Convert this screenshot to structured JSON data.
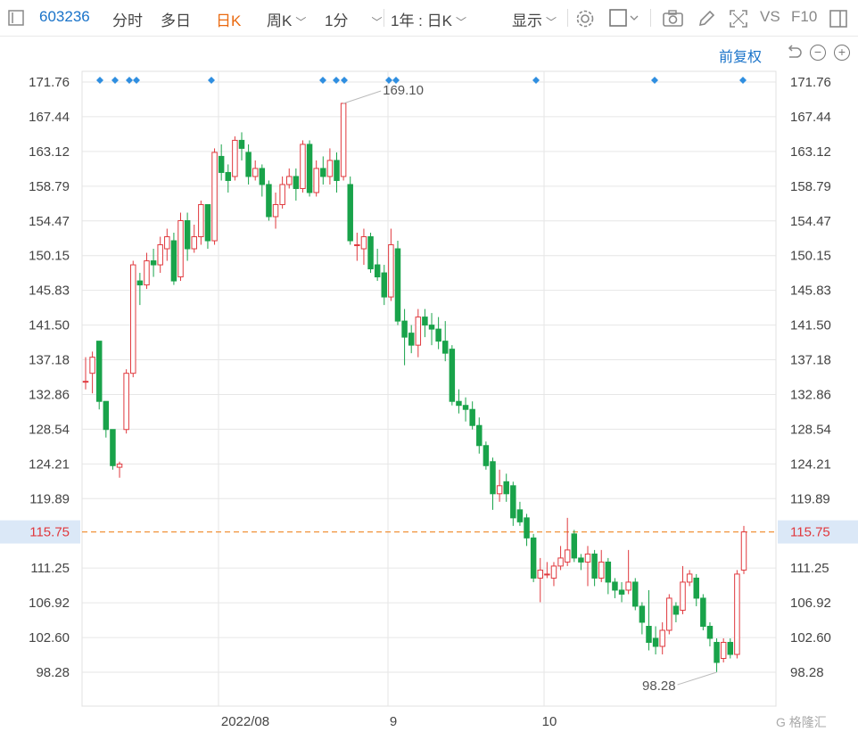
{
  "toolbar": {
    "stock_code": "603236",
    "tab_intraday": "分时",
    "tab_multiday": "多日",
    "tab_daily": "日K",
    "tab_weekly": "周K",
    "tab_minute": "1分",
    "range": "1年 : 日K",
    "display": "显示",
    "vs": "VS",
    "f10": "F10"
  },
  "subbar": {
    "adjust": "前复权"
  },
  "colors": {
    "up": "#e0393e",
    "down": "#19a34a",
    "grid": "#e6e6e6",
    "refline": "#f0923a",
    "highlight_bg": "#dbe8f7",
    "event": "#2f8ee0"
  },
  "icons": [
    "list-toggle-icon",
    "settings-gear-icon",
    "square-checkbox-icon",
    "camera-icon",
    "pencil-icon",
    "fullscreen-icon",
    "panel-icon",
    "undo-icon",
    "zoom-out-icon",
    "zoom-in-icon"
  ],
  "chart_data": {
    "type": "candlestick",
    "y_ticks": [
      "171.76",
      "167.44",
      "163.12",
      "158.79",
      "154.47",
      "150.15",
      "145.83",
      "141.50",
      "137.18",
      "132.86",
      "128.54",
      "124.21",
      "119.89",
      "111.25",
      "106.92",
      "102.60",
      "98.28"
    ],
    "ylim": [
      98.28,
      171.76
    ],
    "x_labels": [
      "2022/08",
      "9",
      "10"
    ],
    "current_price_label": "115.75",
    "current_price": 115.75,
    "annotations": {
      "high_label": "169.10",
      "high": 169.1,
      "low_label": "98.28",
      "low": 98.28
    },
    "event_markers_count": 11,
    "candles": [
      [
        134.5,
        134.5,
        137.5,
        133.5
      ],
      [
        135.5,
        137.5,
        138.2,
        133.0
      ],
      [
        139.5,
        132.0,
        139.5,
        131.0
      ],
      [
        132.0,
        128.5,
        132.0,
        127.5
      ],
      [
        128.5,
        124.0,
        128.5,
        123.5
      ],
      [
        123.8,
        124.2,
        124.5,
        122.5
      ],
      [
        128.5,
        135.5,
        136.0,
        128.0
      ],
      [
        135.5,
        149.0,
        149.5,
        135.0
      ],
      [
        147.0,
        146.5,
        148.0,
        144.0
      ],
      [
        146.5,
        149.5,
        150.5,
        146.0
      ],
      [
        149.5,
        149.0,
        151.0,
        147.5
      ],
      [
        149.0,
        151.5,
        152.5,
        148.0
      ],
      [
        151.0,
        152.5,
        153.5,
        149.5
      ],
      [
        152.0,
        147.0,
        153.0,
        146.5
      ],
      [
        147.5,
        154.5,
        155.5,
        147.0
      ],
      [
        154.5,
        151.0,
        155.5,
        149.5
      ],
      [
        151.0,
        152.5,
        154.0,
        150.5
      ],
      [
        152.5,
        156.5,
        157.0,
        151.5
      ],
      [
        156.5,
        152.0,
        156.5,
        151.0
      ],
      [
        152.0,
        163.0,
        163.5,
        151.5
      ],
      [
        162.5,
        160.5,
        164.0,
        159.5
      ],
      [
        160.5,
        159.5,
        161.5,
        158.0
      ],
      [
        160.0,
        164.5,
        165.0,
        159.5
      ],
      [
        164.5,
        163.5,
        165.5,
        162.0
      ],
      [
        163.0,
        160.0,
        164.0,
        159.0
      ],
      [
        160.0,
        161.0,
        162.0,
        159.5
      ],
      [
        161.0,
        159.0,
        161.5,
        157.5
      ],
      [
        159.0,
        155.0,
        159.5,
        154.5
      ],
      [
        155.0,
        156.5,
        158.0,
        153.5
      ],
      [
        156.5,
        159.0,
        160.0,
        156.0
      ],
      [
        159.0,
        160.0,
        161.0,
        158.5
      ],
      [
        160.0,
        158.5,
        161.0,
        157.0
      ],
      [
        158.5,
        164.0,
        164.5,
        158.0
      ],
      [
        164.0,
        158.0,
        164.5,
        157.5
      ],
      [
        158.0,
        161.0,
        162.0,
        157.5
      ],
      [
        161.0,
        160.0,
        162.5,
        159.0
      ],
      [
        160.0,
        162.0,
        163.5,
        159.0
      ],
      [
        162.0,
        159.5,
        163.0,
        158.0
      ],
      [
        160.0,
        169.1,
        169.1,
        159.5
      ],
      [
        159.0,
        152.0,
        160.0,
        151.5
      ],
      [
        151.5,
        151.5,
        153.0,
        149.5
      ],
      [
        151.0,
        152.5,
        153.5,
        149.0
      ],
      [
        152.5,
        148.5,
        153.0,
        148.0
      ],
      [
        149.0,
        147.5,
        151.0,
        147.0
      ],
      [
        148.0,
        145.0,
        149.0,
        144.0
      ],
      [
        145.0,
        151.5,
        153.5,
        144.5
      ],
      [
        151.0,
        142.0,
        152.0,
        141.5
      ],
      [
        142.0,
        140.0,
        143.5,
        136.5
      ],
      [
        140.5,
        139.0,
        141.5,
        138.0
      ],
      [
        139.0,
        142.5,
        143.5,
        137.5
      ],
      [
        142.5,
        141.5,
        143.5,
        140.0
      ],
      [
        141.5,
        141.0,
        143.0,
        139.0
      ],
      [
        141.0,
        139.5,
        142.5,
        138.5
      ],
      [
        139.5,
        138.0,
        142.0,
        137.0
      ],
      [
        138.5,
        132.0,
        139.0,
        131.5
      ],
      [
        132.0,
        131.5,
        133.5,
        130.5
      ],
      [
        131.5,
        131.0,
        132.5,
        129.5
      ],
      [
        131.0,
        129.0,
        132.0,
        128.5
      ],
      [
        129.0,
        126.5,
        130.0,
        125.5
      ],
      [
        126.5,
        124.0,
        127.0,
        123.5
      ],
      [
        124.5,
        120.5,
        125.0,
        118.5
      ],
      [
        120.5,
        121.5,
        123.5,
        119.5
      ],
      [
        122.0,
        120.5,
        123.0,
        119.5
      ],
      [
        121.5,
        117.5,
        122.0,
        116.5
      ],
      [
        118.5,
        117.0,
        119.5,
        116.5
      ],
      [
        117.5,
        115.0,
        118.0,
        114.0
      ],
      [
        115.0,
        110.0,
        115.5,
        109.5
      ],
      [
        110.0,
        111.0,
        112.5,
        107.0
      ],
      [
        110.5,
        110.5,
        112.0,
        110.0
      ],
      [
        110.0,
        111.5,
        112.0,
        109.0
      ],
      [
        111.5,
        112.5,
        114.0,
        111.0
      ],
      [
        112.0,
        113.5,
        117.5,
        111.5
      ],
      [
        115.5,
        112.5,
        116.0,
        112.0
      ],
      [
        112.5,
        112.0,
        113.0,
        111.0
      ],
      [
        112.0,
        113.0,
        114.0,
        109.0
      ],
      [
        113.0,
        110.0,
        113.5,
        109.0
      ],
      [
        110.0,
        112.0,
        113.5,
        109.5
      ],
      [
        112.0,
        109.5,
        112.5,
        108.0
      ],
      [
        109.5,
        108.5,
        110.0,
        107.5
      ],
      [
        108.5,
        108.0,
        109.5,
        107.0
      ],
      [
        108.5,
        109.5,
        113.5,
        108.0
      ],
      [
        109.5,
        106.5,
        110.0,
        106.0
      ],
      [
        106.5,
        104.5,
        107.0,
        103.0
      ],
      [
        104.0,
        102.0,
        108.5,
        101.0
      ],
      [
        102.5,
        101.5,
        104.0,
        100.5
      ],
      [
        101.5,
        103.5,
        104.5,
        100.5
      ],
      [
        103.5,
        107.5,
        108.0,
        103.0
      ],
      [
        106.5,
        105.5,
        107.0,
        104.5
      ],
      [
        106.0,
        109.5,
        111.5,
        105.5
      ],
      [
        109.5,
        110.5,
        111.0,
        109.0
      ],
      [
        110.0,
        107.5,
        110.5,
        106.5
      ],
      [
        107.5,
        104.0,
        108.0,
        103.5
      ],
      [
        104.0,
        102.5,
        104.5,
        101.5
      ],
      [
        102.0,
        99.5,
        102.5,
        98.3
      ],
      [
        100.0,
        102.0,
        102.5,
        99.5
      ],
      [
        102.0,
        100.5,
        102.5,
        100.0
      ],
      [
        100.5,
        110.5,
        111.0,
        100.0
      ],
      [
        111.0,
        115.75,
        116.5,
        110.5
      ]
    ]
  }
}
